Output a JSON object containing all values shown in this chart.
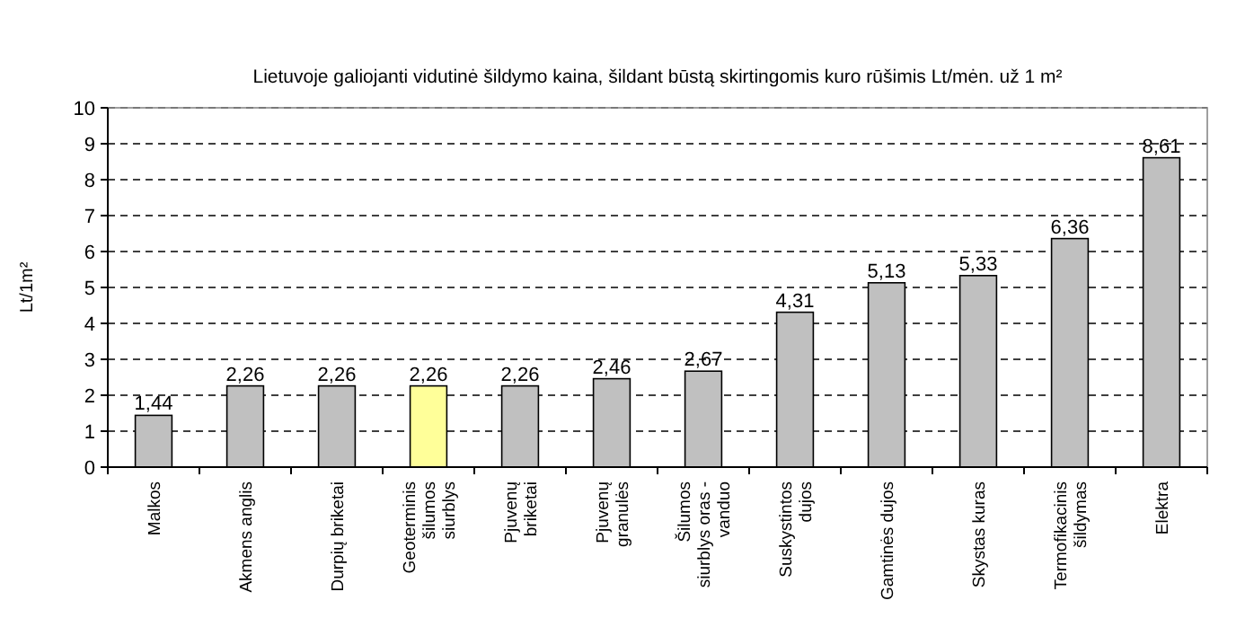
{
  "chart_data": {
    "type": "bar",
    "title": "Lietuvoje galiojanti vidutinė šildymo kaina, šildant būstą skirtingomis kuro rūšimis Lt/mėn. už 1 m²",
    "ylabel": "Lt/1m²",
    "categories": [
      "Malkos",
      "Akmens anglis",
      "Durpių briketai",
      "Geoterminis\nšilumos\nsiurblys",
      "Pjuvenų\nbriketai",
      "Pjuvenų\ngranulės",
      "Šilumos\nsiurblys oras -\nvanduo",
      "Suskystintos\ndujos",
      "Gamtinės dujos",
      "Skystas kuras",
      "Termofikacinis\nšildymas",
      "Elektra"
    ],
    "values": [
      1.44,
      2.26,
      2.26,
      2.26,
      2.26,
      2.46,
      2.67,
      4.31,
      5.13,
      5.33,
      6.36,
      8.61
    ],
    "colors": [
      "#c0c0c0",
      "#c0c0c0",
      "#c0c0c0",
      "#ffff99",
      "#c0c0c0",
      "#c0c0c0",
      "#c0c0c0",
      "#c0c0c0",
      "#c0c0c0",
      "#c0c0c0",
      "#c0c0c0",
      "#c0c0c0"
    ],
    "value_labels": [
      "1,44",
      "2,26",
      "2,26",
      "2,26",
      "2,26",
      "2,46",
      "2,67",
      "4,31",
      "5,13",
      "5,33",
      "6,36",
      "8,61"
    ],
    "ylim": [
      0,
      10
    ],
    "yticks": [
      0,
      1,
      2,
      3,
      4,
      5,
      6,
      7,
      8,
      9,
      10
    ],
    "grid": "y"
  }
}
